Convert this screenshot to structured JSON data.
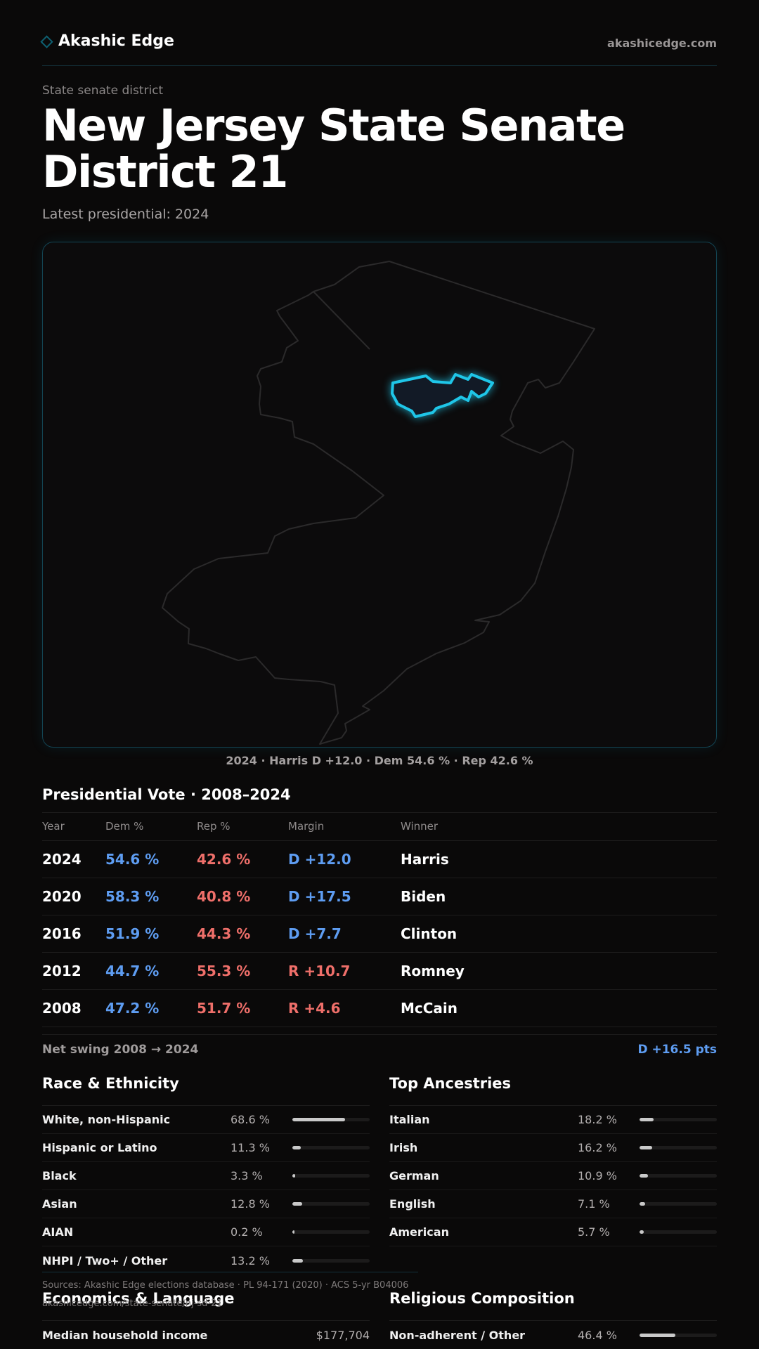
{
  "header": {
    "brand": "Akashic Edge",
    "site": "akashicedge.com"
  },
  "eyebrow": "State senate district",
  "title": "New Jersey State Senate District 21",
  "subtitle": "Latest presidential: 2024",
  "map": {
    "caption": "2024 · Harris D +12.0 · Dem 54.6 % · Rep 42.6 %",
    "highlight_color": "#1fc6e8",
    "outline_color": "#2b2a2b"
  },
  "presidential": {
    "title": "Presidential Vote · 2008–2024",
    "columns": [
      "Year",
      "Dem %",
      "Rep %",
      "Margin",
      "Winner"
    ],
    "rows": [
      {
        "year": "2024",
        "dem": "54.6 %",
        "rep": "42.6 %",
        "margin": "D +12.0",
        "margin_party": "D",
        "winner": "Harris"
      },
      {
        "year": "2020",
        "dem": "58.3 %",
        "rep": "40.8 %",
        "margin": "D +17.5",
        "margin_party": "D",
        "winner": "Biden"
      },
      {
        "year": "2016",
        "dem": "51.9 %",
        "rep": "44.3 %",
        "margin": "D +7.7",
        "margin_party": "D",
        "winner": "Clinton"
      },
      {
        "year": "2012",
        "dem": "44.7 %",
        "rep": "55.3 %",
        "margin": "R +10.7",
        "margin_party": "R",
        "winner": "Romney"
      },
      {
        "year": "2008",
        "dem": "47.2 %",
        "rep": "51.7 %",
        "margin": "R +4.6",
        "margin_party": "R",
        "winner": "McCain"
      }
    ],
    "swing_label": "Net swing 2008 → 2024",
    "swing_value": "D +16.5 pts"
  },
  "race": {
    "title": "Race & Ethnicity",
    "rows": [
      {
        "label": "White, non-Hispanic",
        "pct": "68.6 %",
        "share": 0.686
      },
      {
        "label": "Hispanic or Latino",
        "pct": "11.3 %",
        "share": 0.113
      },
      {
        "label": "Black",
        "pct": "3.3 %",
        "share": 0.033
      },
      {
        "label": "Asian",
        "pct": "12.8 %",
        "share": 0.128
      },
      {
        "label": "AIAN",
        "pct": "0.2 %",
        "share": 0.002
      },
      {
        "label": "NHPI / Two+ / Other",
        "pct": "13.2 %",
        "share": 0.132
      }
    ]
  },
  "ancestry": {
    "title": "Top Ancestries",
    "rows": [
      {
        "label": "Italian",
        "pct": "18.2 %",
        "share": 0.182
      },
      {
        "label": "Irish",
        "pct": "16.2 %",
        "share": 0.162
      },
      {
        "label": "German",
        "pct": "10.9 %",
        "share": 0.109
      },
      {
        "label": "English",
        "pct": "7.1 %",
        "share": 0.071
      },
      {
        "label": "American",
        "pct": "5.7 %",
        "share": 0.057
      }
    ]
  },
  "sources": {
    "line1": "Sources: Akashic Edge elections database · PL 94-171 (2020) · ACS 5-yr B04006",
    "line2": "akashicedge.com/state-senate/nj-sd-21"
  },
  "economics": {
    "title": "Economics & Language",
    "rows": [
      {
        "label": "Median household income",
        "value": "$177,704"
      }
    ]
  },
  "religion": {
    "title": "Religious Composition",
    "rows": [
      {
        "label": "Non-adherent / Other",
        "pct": "46.4 %",
        "share": 0.464
      }
    ]
  }
}
